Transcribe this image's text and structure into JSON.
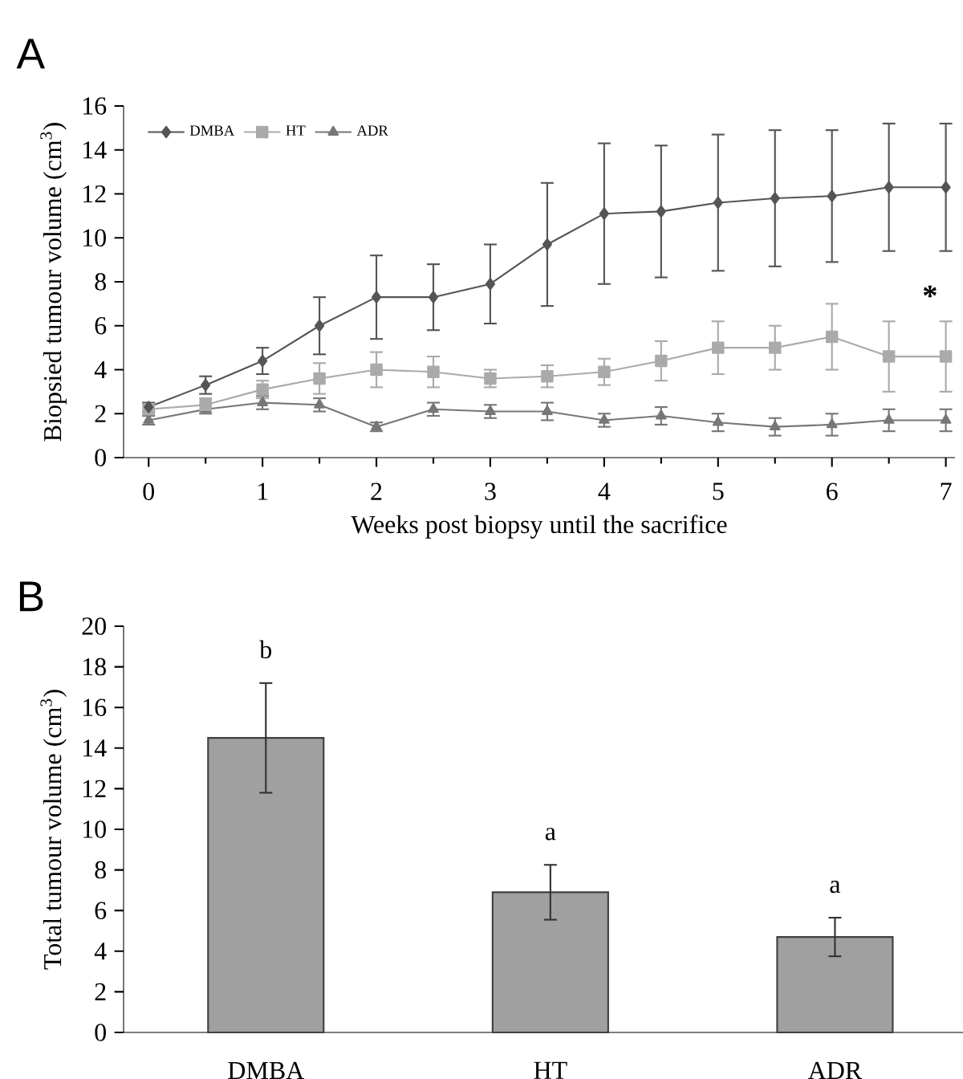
{
  "chart_data": [
    {
      "type": "line",
      "title": "A",
      "xlabel": "Weeks post biopsy until the sacrifice",
      "ylabel": "Biopsied tumour volume (cm$^{3}$)",
      "x": [
        0,
        0.5,
        1,
        1.5,
        2,
        2.5,
        3,
        3.5,
        4,
        4.5,
        5,
        5.5,
        6,
        6.5,
        7
      ],
      "series": [
        {
          "name": "DMBA",
          "color": "#555555",
          "marker": "diamond",
          "values": [
            2.3,
            3.3,
            4.4,
            6.0,
            7.3,
            7.3,
            7.9,
            9.7,
            11.1,
            11.2,
            11.6,
            11.8,
            11.9,
            12.3,
            12.3
          ],
          "errors": [
            0.2,
            0.4,
            0.6,
            1.3,
            1.9,
            1.5,
            1.8,
            2.8,
            3.2,
            3.0,
            3.1,
            3.1,
            3.0,
            2.9,
            2.9
          ]
        },
        {
          "name": "HT",
          "color": "#aaaaaa",
          "marker": "square",
          "values": [
            2.2,
            2.4,
            3.1,
            3.6,
            4.0,
            3.9,
            3.6,
            3.7,
            3.9,
            4.4,
            5.0,
            5.0,
            5.5,
            4.6,
            4.6
          ],
          "errors": [
            0.2,
            0.3,
            0.4,
            0.7,
            0.8,
            0.7,
            0.4,
            0.5,
            0.6,
            0.9,
            1.2,
            1.0,
            1.5,
            1.6,
            1.6
          ]
        },
        {
          "name": "ADR",
          "color": "#777777",
          "marker": "triangle",
          "values": [
            1.7,
            2.2,
            2.5,
            2.4,
            1.4,
            2.2,
            2.1,
            2.1,
            1.7,
            1.9,
            1.6,
            1.4,
            1.5,
            1.7,
            1.7
          ],
          "errors": [
            0.2,
            0.2,
            0.3,
            0.3,
            0.2,
            0.3,
            0.3,
            0.4,
            0.3,
            0.4,
            0.4,
            0.4,
            0.5,
            0.5,
            0.5
          ]
        }
      ],
      "xlim": [
        -0.22,
        7.08
      ],
      "xticks": [
        0,
        1,
        2,
        3,
        4,
        5,
        6,
        7
      ],
      "ylim": [
        0,
        16
      ],
      "yticks": [
        0,
        2,
        4,
        6,
        8,
        10,
        12,
        14,
        16
      ],
      "legend": "top left",
      "annotations": [
        "*"
      ]
    },
    {
      "type": "bar",
      "title": "B",
      "ylabel": "Total tumour volume (cm$^{3}$)",
      "categories": [
        "DMBA",
        "HT",
        "ADR"
      ],
      "values": [
        14.5,
        6.9,
        4.7
      ],
      "errors": [
        2.7,
        1.35,
        0.95
      ],
      "color": "#a0a0a0",
      "ylim": [
        0,
        20
      ],
      "yticks": [
        0,
        2,
        4,
        6,
        8,
        10,
        12,
        14,
        16,
        18,
        20
      ],
      "annotations": [
        "b",
        "a",
        "a"
      ]
    }
  ]
}
